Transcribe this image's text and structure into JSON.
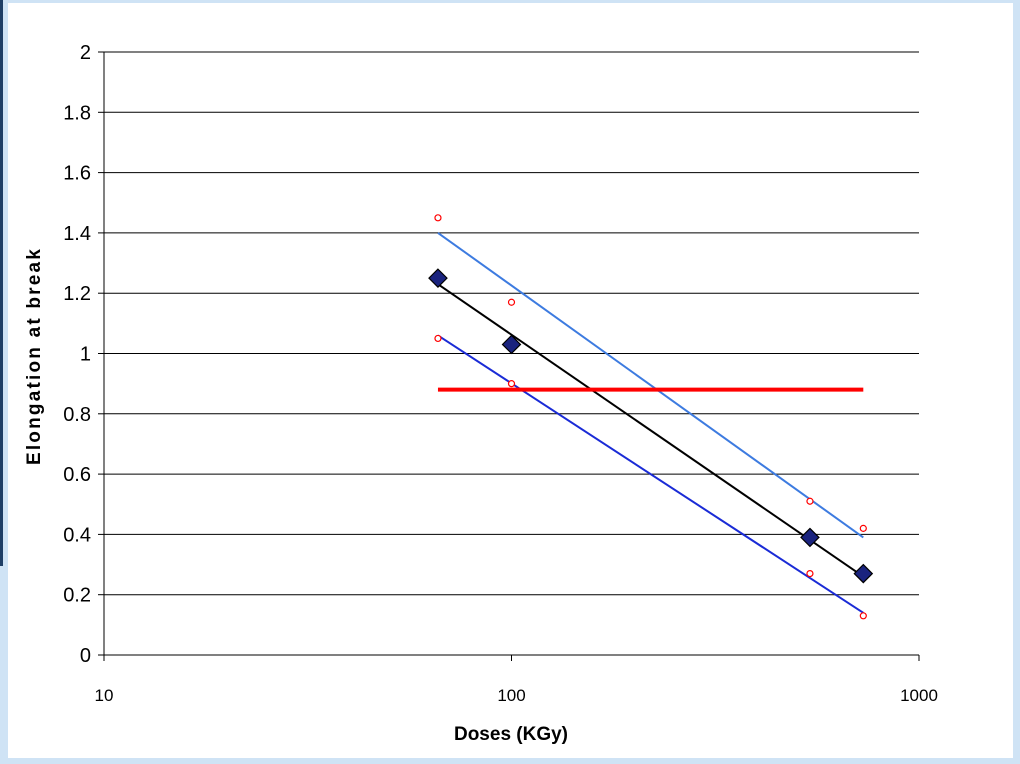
{
  "chart_data": {
    "type": "scatter",
    "title": "",
    "xlabel": "Doses (KGy)",
    "ylabel": "Elongation at break",
    "xscale": "log",
    "xlim": [
      10,
      1000
    ],
    "ylim": [
      0,
      2
    ],
    "x_tick_labels": [
      "10",
      "100",
      "1000"
    ],
    "y_tick_labels": [
      "0",
      "0.2",
      "0.4",
      "0.6",
      "0.8",
      "1",
      "1.2",
      "1.4",
      "1.6",
      "1.8",
      "2"
    ],
    "grid": "horizontal",
    "legend": "none",
    "series": [
      {
        "role": "measured",
        "marker": "diamond",
        "color": "#1a237e",
        "x": [
          66,
          100,
          540,
          730
        ],
        "y": [
          1.25,
          1.03,
          0.39,
          0.27
        ]
      },
      {
        "role": "upper-bound-points",
        "marker": "open-circle",
        "color": "#ff0000",
        "x": [
          66,
          100,
          540,
          730
        ],
        "y": [
          1.45,
          1.17,
          0.51,
          0.42
        ]
      },
      {
        "role": "lower-bound-points",
        "marker": "open-circle",
        "color": "#ff0000",
        "x": [
          66,
          100,
          540,
          730
        ],
        "y": [
          1.05,
          0.9,
          0.27,
          0.13
        ]
      },
      {
        "role": "fit",
        "line": "solid",
        "color": "#000000",
        "x": [
          66,
          730
        ],
        "y": [
          1.23,
          0.26
        ]
      },
      {
        "role": "upper-bound-fit",
        "line": "solid",
        "color": "#3d7be0",
        "x": [
          66,
          730
        ],
        "y": [
          1.4,
          0.39
        ]
      },
      {
        "role": "lower-bound-fit",
        "line": "solid",
        "color": "#1a2bd6",
        "x": [
          66,
          730
        ],
        "y": [
          1.06,
          0.14
        ]
      },
      {
        "role": "threshold",
        "line": "solid",
        "color": "#ff0000",
        "x": [
          66,
          730
        ],
        "y": [
          0.88,
          0.88
        ]
      }
    ]
  }
}
